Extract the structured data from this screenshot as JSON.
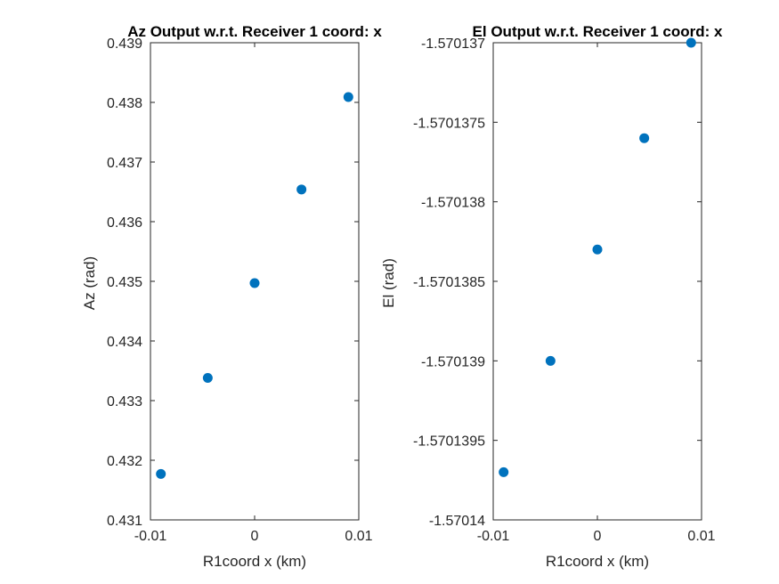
{
  "chart_data": [
    {
      "type": "scatter",
      "title": "Az Output w.r.t. Receiver 1 coord: x",
      "xlabel": "R1coord x (km)",
      "ylabel": "Az (rad)",
      "xlim": [
        -0.01,
        0.01
      ],
      "ylim": [
        0.431,
        0.439
      ],
      "xticks": [
        -0.01,
        0,
        0.01
      ],
      "xtick_labels": [
        "-0.01",
        "0",
        "0.01"
      ],
      "yticks": [
        0.431,
        0.432,
        0.433,
        0.434,
        0.435,
        0.436,
        0.437,
        0.438,
        0.439
      ],
      "ytick_labels": [
        "0.431",
        "0.432",
        "0.433",
        "0.434",
        "0.435",
        "0.436",
        "0.437",
        "0.438",
        "0.439"
      ],
      "grid": false,
      "color": "#0072BD",
      "x": [
        -0.009,
        -0.0045,
        0,
        0.0045,
        0.009
      ],
      "y": [
        0.43177,
        0.43338,
        0.43497,
        0.43654,
        0.43809
      ]
    },
    {
      "type": "scatter",
      "title": "El Output w.r.t. Receiver 1 coord: x",
      "xlabel": "R1coord x (km)",
      "ylabel": "El (rad)",
      "xlim": [
        -0.01,
        0.01
      ],
      "ylim": [
        -1.57014,
        -1.570137
      ],
      "xticks": [
        -0.01,
        0,
        0.01
      ],
      "xtick_labels": [
        "-0.01",
        "0",
        "0.01"
      ],
      "yticks": [
        -1.57014,
        -1.5701395,
        -1.570139,
        -1.5701385,
        -1.570138,
        -1.5701375,
        -1.570137
      ],
      "ytick_labels": [
        "-1.57014",
        "-1.5701395",
        "-1.570139",
        "-1.5701385",
        "-1.570138",
        "-1.5701375",
        "-1.570137"
      ],
      "grid": false,
      "color": "#0072BD",
      "x": [
        -0.009,
        -0.0045,
        0,
        0.0045,
        0.009
      ],
      "y": [
        -1.5701397,
        -1.570139,
        -1.5701383,
        -1.5701376,
        -1.570137
      ]
    }
  ]
}
